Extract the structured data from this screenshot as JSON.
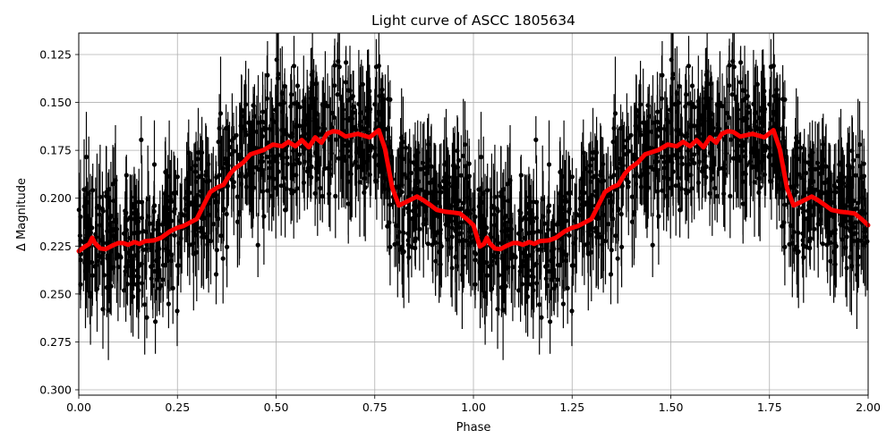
{
  "chart_data": {
    "type": "scatter",
    "title": "Light curve of ASCC 1805634",
    "xlabel": "Phase",
    "ylabel": "Δ Magnitude",
    "xlim": [
      0.0,
      2.0
    ],
    "ylim": [
      0.3028,
      0.1138
    ],
    "y_inverted": true,
    "grid": true,
    "legend": null,
    "xticks": [
      "0.00",
      "0.25",
      "0.50",
      "0.75",
      "1.00",
      "1.25",
      "1.50",
      "1.75",
      "2.00"
    ],
    "yticks": [
      "0.125",
      "0.150",
      "0.175",
      "0.200",
      "0.225",
      "0.250",
      "0.275",
      "0.300"
    ],
    "series": [
      {
        "name": "observations",
        "style": "black points with vertical error bars",
        "color": "#000000",
        "description": "Dense phase-folded photometry, scatter roughly ±0.05 mag around the binned curve, error bars ~0.01–0.03 mag",
        "approx_point_count_per_period": 900
      },
      {
        "name": "binned curve",
        "style": "thick line",
        "color": "#ff0000",
        "period_phase": [
          0.0,
          0.016,
          0.027,
          0.034,
          0.041,
          0.054,
          0.068,
          0.084,
          0.1,
          0.113,
          0.125,
          0.141,
          0.154,
          0.168,
          0.191,
          0.209,
          0.231,
          0.249,
          0.265,
          0.299,
          0.333,
          0.351,
          0.367,
          0.383,
          0.395,
          0.417,
          0.435,
          0.469,
          0.492,
          0.515,
          0.531,
          0.549,
          0.565,
          0.583,
          0.599,
          0.615,
          0.629,
          0.645,
          0.658,
          0.676,
          0.707,
          0.737,
          0.76,
          0.776,
          0.794,
          0.811,
          0.834,
          0.857,
          0.873,
          0.889,
          0.907,
          0.93,
          0.95,
          0.966,
          0.983,
          1.0
        ],
        "period_mag": [
          0.2276,
          0.2252,
          0.2238,
          0.2206,
          0.2234,
          0.2262,
          0.2266,
          0.2248,
          0.2234,
          0.2234,
          0.2243,
          0.2229,
          0.2238,
          0.2224,
          0.222,
          0.2206,
          0.2173,
          0.2155,
          0.2145,
          0.2108,
          0.1968,
          0.1944,
          0.193,
          0.1874,
          0.1846,
          0.1813,
          0.1771,
          0.1748,
          0.172,
          0.1729,
          0.1706,
          0.1729,
          0.1696,
          0.1734,
          0.1682,
          0.171,
          0.1664,
          0.165,
          0.1654,
          0.1678,
          0.1664,
          0.1682,
          0.1645,
          0.1743,
          0.1944,
          0.2038,
          0.2015,
          0.1991,
          0.201,
          0.2033,
          0.2061,
          0.2071,
          0.2075,
          0.208,
          0.2108,
          0.2141
        ]
      }
    ]
  }
}
